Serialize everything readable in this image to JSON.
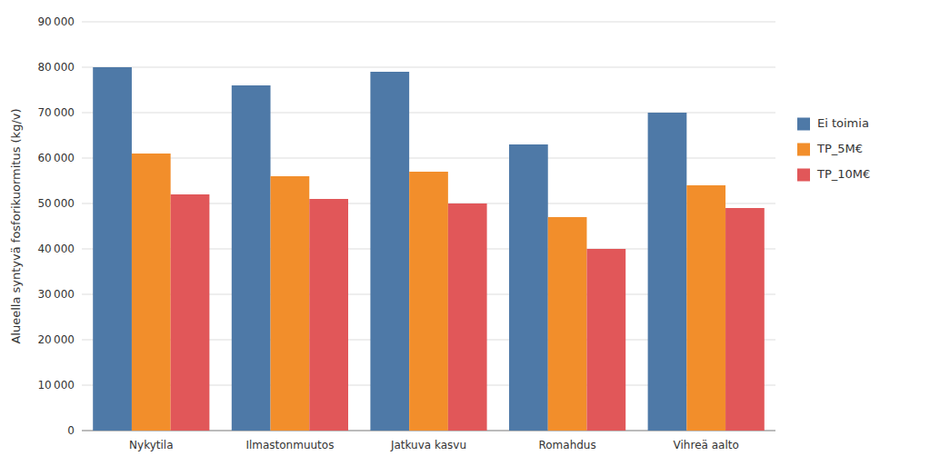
{
  "chart_data": {
    "type": "bar",
    "categories": [
      "Nykytila",
      "Ilmastonmuutos",
      "Jatkuva kasvu",
      "Romahdus",
      "Vihreä aalto"
    ],
    "series": [
      {
        "name": "Ei toimia",
        "values": [
          80000,
          76000,
          79000,
          63000,
          70000
        ]
      },
      {
        "name": "TP_5M€",
        "values": [
          61000,
          56000,
          57000,
          47000,
          54000
        ]
      },
      {
        "name": "TP_10M€",
        "values": [
          52000,
          51000,
          50000,
          40000,
          49000
        ]
      }
    ],
    "ylabel": "Alueella syntyvä fosforikuormitus (kg/v)",
    "ylim": [
      0,
      90000
    ],
    "yticks": [
      0,
      {
        "value": 10000,
        "label": "10 000"
      },
      {
        "value": 20000,
        "label": "20 000"
      },
      {
        "value": 30000,
        "label": "30 000"
      },
      {
        "value": 40000,
        "label": "40 000"
      },
      {
        "value": 50000,
        "label": "50 000"
      },
      {
        "value": 60000,
        "label": "60 000"
      },
      {
        "value": 70000,
        "label": "70 000"
      },
      {
        "value": 80000,
        "label": "80 000"
      },
      {
        "value": 90000,
        "label": "90 000"
      }
    ],
    "grid": true,
    "legend": "right"
  }
}
